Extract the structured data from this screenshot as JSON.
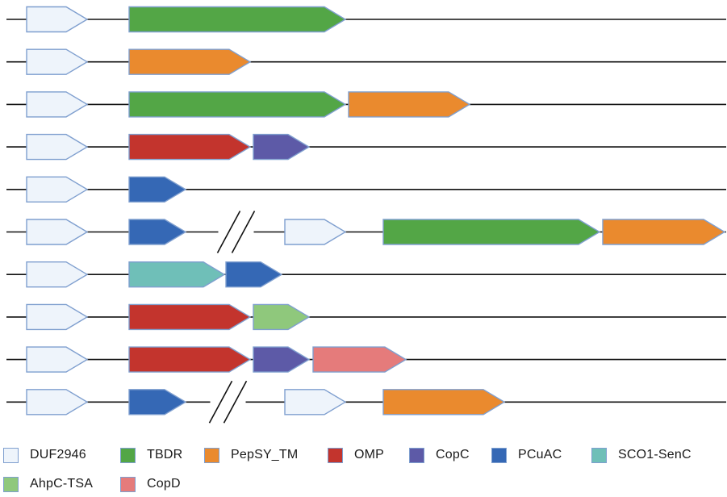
{
  "gene_types": {
    "DUF2946": {
      "color": "#eef4fb"
    },
    "TBDR": {
      "color": "#53a646"
    },
    "PepSY_TM": {
      "color": "#ea8a2e"
    },
    "OMP": {
      "color": "#c3342d"
    },
    "CopC": {
      "color": "#5d5aa7"
    },
    "PCuAC": {
      "color": "#3568b5"
    },
    "SCO1-SenC": {
      "color": "#6fbfb8"
    },
    "AhpC-TSA": {
      "color": "#8fc87c"
    },
    "CopD": {
      "color": "#e57b7b"
    }
  },
  "outline_color": "#7f9fcf",
  "clusters": [
    {
      "genes": [
        "DUF2946",
        "TBDR"
      ]
    },
    {
      "genes": [
        "DUF2946",
        "PepSY_TM"
      ]
    },
    {
      "genes": [
        "DUF2946",
        "TBDR",
        "PepSY_TM"
      ]
    },
    {
      "genes": [
        "DUF2946",
        "OMP",
        "CopC"
      ]
    },
    {
      "genes": [
        "DUF2946",
        "PCuAC"
      ]
    },
    {
      "genes": [
        "DUF2946",
        "PCuAC",
        "break",
        "DUF2946",
        "TBDR",
        "PepSY_TM"
      ]
    },
    {
      "genes": [
        "DUF2946",
        "SCO1-SenC",
        "PCuAC"
      ]
    },
    {
      "genes": [
        "DUF2946",
        "OMP",
        "AhpC-TSA"
      ]
    },
    {
      "genes": [
        "DUF2946",
        "OMP",
        "CopC",
        "CopD"
      ]
    },
    {
      "genes": [
        "DUF2946",
        "PCuAC",
        "break",
        "DUF2946",
        "PepSY_TM"
      ]
    }
  ],
  "legend": [
    {
      "key": "DUF2946",
      "label": "DUF2946"
    },
    {
      "key": "TBDR",
      "label": "TBDR"
    },
    {
      "key": "PepSY_TM",
      "label": "PepSY_TM"
    },
    {
      "key": "OMP",
      "label": "OMP"
    },
    {
      "key": "CopC",
      "label": "CopC"
    },
    {
      "key": "PCuAC",
      "label": "PCuAC"
    },
    {
      "key": "SCO1-SenC",
      "label": "SCO1-SenC"
    },
    {
      "key": "AhpC-TSA",
      "label": "AhpC-TSA"
    },
    {
      "key": "CopD",
      "label": "CopD"
    }
  ]
}
